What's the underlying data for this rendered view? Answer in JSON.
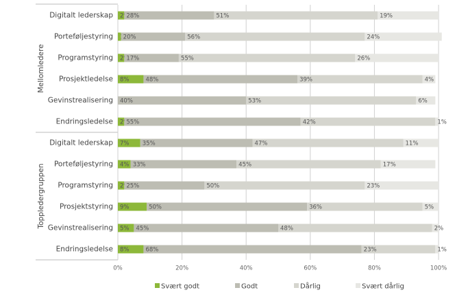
{
  "chart_data": {
    "type": "stacked_bar_horizontal",
    "groups": [
      "Mellomledere",
      "Toppledergruppen"
    ],
    "categories": [
      "Digitalt lederskap",
      "Porteføljestyring",
      "Programstyring",
      "Prosjektledelse",
      "Gevinstrealisering",
      "Endringsledelse",
      "Digitalt lederskap",
      "Porteføljestyring",
      "Programstyring",
      "Prosjektstyring",
      "Gevinstrealisering",
      "Endringsledelse"
    ],
    "series": [
      {
        "name": "Svært godt",
        "color": "#8db83a",
        "values": [
          2,
          1,
          2,
          8,
          null,
          2,
          7,
          4,
          2,
          9,
          5,
          8
        ],
        "value_labels": [
          "2%",
          "1%",
          "2%",
          "8%",
          null,
          "2%",
          "7%",
          "4%",
          "2%",
          "9%",
          "5%",
          "8%"
        ]
      },
      {
        "name": "Godt",
        "color": "#bdbdb3",
        "values": [
          28,
          20,
          17,
          48,
          40,
          55,
          35,
          33,
          25,
          50,
          45,
          68
        ],
        "value_labels": [
          "28%",
          "20%",
          "17%",
          "48%",
          "40%",
          "55%",
          "35%",
          "33%",
          "25%",
          "50%",
          "45%",
          "68%"
        ]
      },
      {
        "name": "Dårlig",
        "color": "#d5d5ce",
        "values": [
          51,
          56,
          55,
          39,
          53,
          42,
          47,
          45,
          50,
          36,
          48,
          23
        ],
        "value_labels": [
          "51%",
          "56%",
          "55%",
          "39%",
          "53%",
          "42%",
          "47%",
          "45%",
          "50%",
          "36%",
          "48%",
          "23%"
        ]
      },
      {
        "name": "Svært dårlig",
        "color": "#e7e7e3",
        "values": [
          19,
          24,
          26,
          4,
          6,
          1,
          11,
          17,
          23,
          5,
          2,
          1
        ],
        "value_labels": [
          "19%",
          "24%",
          "26%",
          "4%",
          "6%",
          "1%",
          "11%",
          "17%",
          "23%",
          "5%",
          "2%",
          "1%"
        ]
      }
    ],
    "xlim": [
      0,
      100
    ],
    "xticks": [
      {
        "value": 0,
        "label": "0%"
      },
      {
        "value": 20,
        "label": "20%"
      },
      {
        "value": 40,
        "label": "40%"
      },
      {
        "value": 60,
        "label": "60%"
      },
      {
        "value": 80,
        "label": "80%"
      },
      {
        "value": 100,
        "label": "100%"
      }
    ],
    "grid": true
  }
}
